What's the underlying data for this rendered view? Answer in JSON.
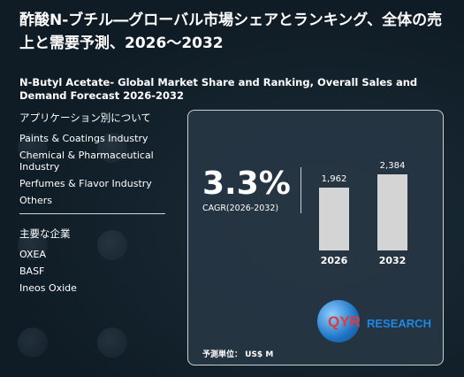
{
  "title_jp": "酢酸N-ブチル―グローバル市場シェアとランキング、全体の売上と需要予測、2026～2032",
  "title_en": "N-Butyl Acetate- Global Market Share and Ranking, Overall Sales and Demand Forecast 2026-2032",
  "applications": {
    "heading": "アプリケーション別について",
    "items": [
      "Paints & Coatings Industry",
      "Chemical & Pharmaceutical Industry",
      "Perfumes & Flavor Industry",
      "Others"
    ]
  },
  "companies": {
    "heading": "主要な企業",
    "items": [
      "OXEA",
      "BASF",
      "Ineos Oxide"
    ]
  },
  "cagr": {
    "value": "3.3%",
    "label": "CAGR(2026-2032)"
  },
  "chart_data": {
    "type": "bar",
    "categories": [
      "2026",
      "2032"
    ],
    "values": [
      1962,
      2384
    ],
    "value_labels": [
      "1,962",
      "2,384"
    ],
    "title": "",
    "xlabel": "",
    "ylabel": ""
  },
  "unit_label": "予測単位： US$ M",
  "logo": {
    "mark": "QYR",
    "text": "RESEARCH"
  },
  "colors": {
    "background": "#0f1c25",
    "bar": "#d4d4d4",
    "logo_red": "#e23a3a",
    "logo_blue": "#1e88e5"
  }
}
